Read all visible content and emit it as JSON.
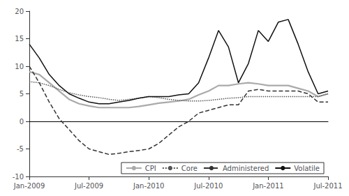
{
  "chart_data": {
    "type": "line",
    "categories": [
      "Jan-2009",
      null,
      null,
      null,
      null,
      null,
      "Jul-2009",
      null,
      null,
      null,
      null,
      null,
      "Jan-2010",
      null,
      null,
      null,
      null,
      null,
      "Jul-2010",
      null,
      null,
      null,
      null,
      null,
      "Jan-2011",
      null,
      null,
      null,
      null,
      null,
      "Jul-2011"
    ],
    "series": [
      {
        "name": "CPI",
        "color": "#aaaaaa",
        "line_style": "solid",
        "values": [
          9.0,
          8.5,
          7.0,
          5.5,
          4.0,
          3.2,
          2.8,
          2.5,
          2.5,
          2.5,
          2.5,
          2.7,
          3.0,
          3.3,
          3.5,
          3.7,
          4.0,
          4.8,
          5.5,
          6.5,
          6.5,
          6.8,
          7.0,
          6.8,
          6.5,
          6.5,
          6.5,
          6.0,
          5.5,
          4.5,
          5.0
        ]
      },
      {
        "name": "Core",
        "color": "#555555",
        "line_style": "dotted",
        "values": [
          7.2,
          7.0,
          6.5,
          5.8,
          5.2,
          4.8,
          4.5,
          4.3,
          4.0,
          3.8,
          4.0,
          4.2,
          4.5,
          4.3,
          4.0,
          3.8,
          3.7,
          3.7,
          3.8,
          4.0,
          4.2,
          4.3,
          4.5,
          4.5,
          4.5,
          4.5,
          4.5,
          4.5,
          4.5,
          4.5,
          5.0
        ]
      },
      {
        "name": "Administered",
        "color": "#333333",
        "line_style": "dashed",
        "values": [
          10.0,
          7.0,
          3.5,
          0.5,
          -1.5,
          -3.5,
          -5.0,
          -5.5,
          -6.0,
          -5.8,
          -5.5,
          -5.3,
          -5.0,
          -4.0,
          -2.5,
          -1.0,
          0.0,
          1.5,
          2.0,
          2.5,
          3.0,
          3.0,
          5.5,
          5.8,
          5.5,
          5.5,
          5.5,
          5.5,
          5.0,
          3.5,
          3.5
        ]
      },
      {
        "name": "Volatile",
        "color": "#111111",
        "line_style": "solid",
        "values": [
          14.0,
          11.5,
          8.5,
          6.5,
          5.0,
          4.2,
          3.5,
          3.2,
          3.2,
          3.5,
          3.8,
          4.2,
          4.5,
          4.5,
          4.5,
          4.8,
          5.0,
          7.0,
          11.5,
          16.5,
          13.5,
          7.0,
          10.5,
          16.5,
          14.5,
          18.0,
          18.5,
          14.0,
          9.0,
          5.0,
          5.5
        ]
      }
    ],
    "ylim": [
      -10,
      20
    ],
    "yticks": [
      -10,
      -5,
      0,
      5,
      10,
      15,
      20
    ],
    "grid": false,
    "legend": "lower right"
  }
}
